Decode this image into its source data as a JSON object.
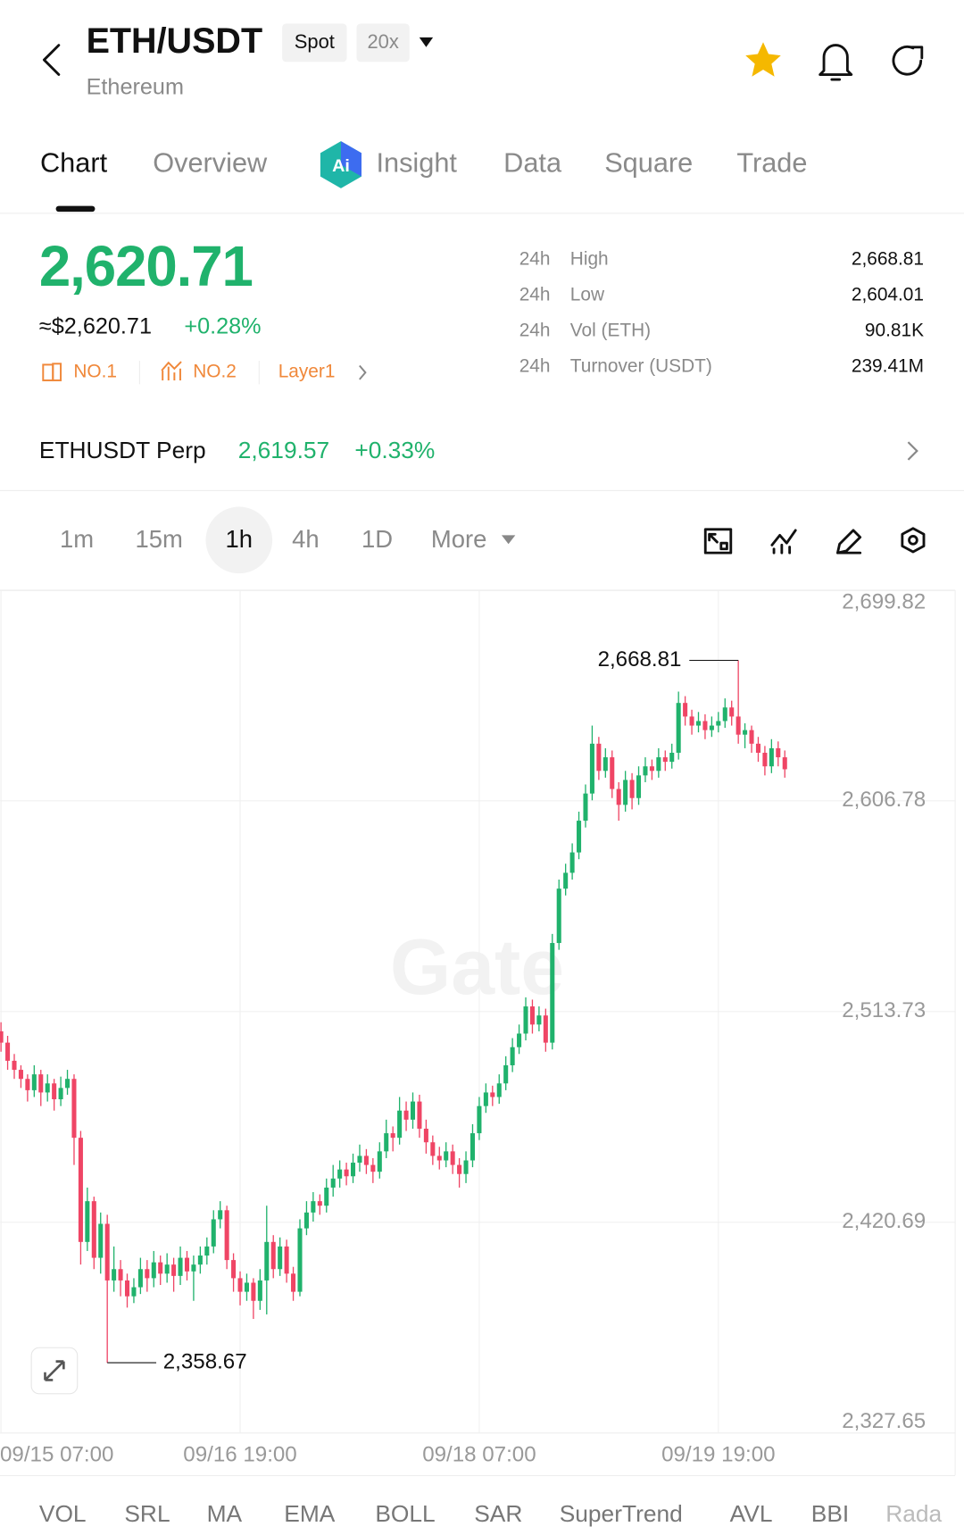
{
  "header": {
    "pair": "ETH/USDT",
    "market": "Spot",
    "leverage": "20x",
    "name": "Ethereum"
  },
  "tabs": [
    "Chart",
    "Overview",
    "Insight",
    "Data",
    "Square",
    "Trade"
  ],
  "ticker": {
    "price": "2,620.71",
    "usd": "≈$2,620.71",
    "change": "+0.28%",
    "tags": [
      "NO.1",
      "NO.2",
      "Layer1"
    ]
  },
  "stats": [
    {
      "period": "24h",
      "label": "High",
      "value": "2,668.81"
    },
    {
      "period": "24h",
      "label": "Low",
      "value": "2,604.01"
    },
    {
      "period": "24h",
      "label": "Vol (ETH)",
      "value": "90.81K"
    },
    {
      "period": "24h",
      "label": "Turnover (USDT)",
      "value": "239.41M"
    }
  ],
  "perp": {
    "name": "ETHUSDT Perp",
    "price": "2,619.57",
    "change": "+0.33%"
  },
  "intervals": [
    "1m",
    "15m",
    "1h",
    "4h",
    "1D",
    "More"
  ],
  "chart_data": {
    "type": "candlestick",
    "watermark": "Gate",
    "up_color": "#20b26c",
    "down_color": "#ef4565",
    "grid": true,
    "ylim": [
      2327.65,
      2699.82
    ],
    "yticks": [
      {
        "value": 2699.82,
        "label": "2,699.82"
      },
      {
        "value": 2606.78,
        "label": "2,606.78"
      },
      {
        "value": 2513.73,
        "label": "2,513.73"
      },
      {
        "value": 2420.69,
        "label": "2,420.69"
      },
      {
        "value": 2327.65,
        "label": "2,327.65"
      }
    ],
    "xlim": [
      -0.15,
      143.65
    ],
    "xticks": [
      {
        "value": 0,
        "label": "09/15 07:00"
      },
      {
        "value": 36,
        "label": "09/16 19:00"
      },
      {
        "value": 72,
        "label": "09/18 07:00"
      },
      {
        "value": 108,
        "label": "09/19 19:00"
      }
    ],
    "max_label": "2,668.81",
    "min_label": "2,358.67",
    "values": [
      [
        2505,
        2509,
        2496,
        2500
      ],
      [
        2500,
        2503,
        2488,
        2492
      ],
      [
        2492,
        2495,
        2484,
        2488
      ],
      [
        2488,
        2490,
        2480,
        2484
      ],
      [
        2484,
        2486,
        2474,
        2479
      ],
      [
        2479,
        2490,
        2476,
        2486
      ],
      [
        2486,
        2488,
        2472,
        2478
      ],
      [
        2478,
        2486,
        2474,
        2482
      ],
      [
        2482,
        2484,
        2470,
        2475
      ],
      [
        2475,
        2485,
        2472,
        2480
      ],
      [
        2480,
        2488,
        2477,
        2484
      ],
      [
        2484,
        2486,
        2446,
        2458
      ],
      [
        2458,
        2461,
        2402,
        2412
      ],
      [
        2412,
        2436,
        2408,
        2430
      ],
      [
        2430,
        2432,
        2400,
        2405
      ],
      [
        2405,
        2425,
        2398,
        2420
      ],
      [
        2420,
        2424,
        2358.67,
        2395
      ],
      [
        2395,
        2410,
        2390,
        2400
      ],
      [
        2400,
        2404,
        2388,
        2395
      ],
      [
        2395,
        2398,
        2383,
        2388
      ],
      [
        2388,
        2396,
        2385,
        2392
      ],
      [
        2392,
        2405,
        2389,
        2400
      ],
      [
        2400,
        2404,
        2390,
        2396
      ],
      [
        2396,
        2408,
        2392,
        2403
      ],
      [
        2403,
        2406,
        2393,
        2398
      ],
      [
        2398,
        2407,
        2394,
        2402
      ],
      [
        2402,
        2405,
        2390,
        2397
      ],
      [
        2397,
        2410,
        2393,
        2405
      ],
      [
        2405,
        2408,
        2395,
        2399
      ],
      [
        2399,
        2406,
        2386,
        2402
      ],
      [
        2402,
        2410,
        2398,
        2406
      ],
      [
        2406,
        2414,
        2402,
        2410
      ],
      [
        2410,
        2426,
        2407,
        2422
      ],
      [
        2422,
        2430,
        2418,
        2426
      ],
      [
        2426,
        2428,
        2400,
        2404
      ],
      [
        2404,
        2407,
        2390,
        2396
      ],
      [
        2396,
        2399,
        2384,
        2390
      ],
      [
        2390,
        2398,
        2386,
        2394
      ],
      [
        2394,
        2396,
        2378,
        2386
      ],
      [
        2386,
        2400,
        2382,
        2395
      ],
      [
        2395,
        2428,
        2380,
        2412
      ],
      [
        2412,
        2415,
        2396,
        2400
      ],
      [
        2400,
        2414,
        2397,
        2410
      ],
      [
        2410,
        2413,
        2394,
        2398
      ],
      [
        2398,
        2401,
        2386,
        2390
      ],
      [
        2390,
        2422,
        2388,
        2418
      ],
      [
        2418,
        2430,
        2415,
        2425
      ],
      [
        2425,
        2434,
        2421,
        2430
      ],
      [
        2430,
        2433,
        2424,
        2428
      ],
      [
        2428,
        2440,
        2425,
        2436
      ],
      [
        2436,
        2446,
        2432,
        2440
      ],
      [
        2440,
        2448,
        2436,
        2444
      ],
      [
        2444,
        2447,
        2437,
        2441
      ],
      [
        2441,
        2451,
        2438,
        2447
      ],
      [
        2447,
        2455,
        2443,
        2450
      ],
      [
        2450,
        2453,
        2442,
        2446
      ],
      [
        2446,
        2449,
        2438,
        2443
      ],
      [
        2443,
        2456,
        2440,
        2452
      ],
      [
        2452,
        2466,
        2449,
        2460
      ],
      [
        2460,
        2463,
        2452,
        2458
      ],
      [
        2458,
        2476,
        2455,
        2470
      ],
      [
        2470,
        2474,
        2461,
        2466
      ],
      [
        2466,
        2478,
        2462,
        2474
      ],
      [
        2474,
        2477,
        2458,
        2462
      ],
      [
        2462,
        2466,
        2451,
        2456
      ],
      [
        2456,
        2459,
        2446,
        2450
      ],
      [
        2450,
        2454,
        2444,
        2448
      ],
      [
        2448,
        2456,
        2445,
        2452
      ],
      [
        2452,
        2455,
        2442,
        2446
      ],
      [
        2446,
        2449,
        2436,
        2442
      ],
      [
        2442,
        2452,
        2438,
        2448
      ],
      [
        2448,
        2464,
        2445,
        2460
      ],
      [
        2460,
        2476,
        2457,
        2472
      ],
      [
        2472,
        2482,
        2469,
        2478
      ],
      [
        2478,
        2481,
        2472,
        2476
      ],
      [
        2476,
        2486,
        2473,
        2482
      ],
      [
        2482,
        2494,
        2479,
        2490
      ],
      [
        2490,
        2502,
        2487,
        2498
      ],
      [
        2498,
        2508,
        2495,
        2504
      ],
      [
        2504,
        2520,
        2501,
        2516
      ],
      [
        2516,
        2519,
        2504,
        2508
      ],
      [
        2508,
        2516,
        2505,
        2512
      ],
      [
        2512,
        2515,
        2496,
        2500
      ],
      [
        2500,
        2548,
        2497,
        2544
      ],
      [
        2544,
        2572,
        2541,
        2568
      ],
      [
        2568,
        2579,
        2565,
        2575
      ],
      [
        2575,
        2588,
        2572,
        2584
      ],
      [
        2584,
        2602,
        2581,
        2598
      ],
      [
        2598,
        2614,
        2595,
        2610
      ],
      [
        2610,
        2640,
        2607,
        2632
      ],
      [
        2632,
        2635,
        2616,
        2620
      ],
      [
        2620,
        2630,
        2617,
        2626
      ],
      [
        2626,
        2629,
        2608,
        2612
      ],
      [
        2612,
        2615,
        2598,
        2605
      ],
      [
        2605,
        2620,
        2602,
        2616
      ],
      [
        2616,
        2619,
        2603,
        2608
      ],
      [
        2608,
        2622,
        2605,
        2618
      ],
      [
        2618,
        2626,
        2615,
        2622
      ],
      [
        2622,
        2625,
        2616,
        2620
      ],
      [
        2620,
        2630,
        2617,
        2626
      ],
      [
        2626,
        2629,
        2620,
        2624
      ],
      [
        2624,
        2632,
        2621,
        2628
      ],
      [
        2628,
        2655,
        2625,
        2650
      ],
      [
        2650,
        2653,
        2640,
        2644
      ],
      [
        2644,
        2647,
        2636,
        2640
      ],
      [
        2640,
        2646,
        2637,
        2642
      ],
      [
        2642,
        2645,
        2634,
        2638
      ],
      [
        2638,
        2644,
        2635,
        2640
      ],
      [
        2640,
        2646,
        2637,
        2642
      ],
      [
        2642,
        2652,
        2639,
        2648
      ],
      [
        2648,
        2651,
        2640,
        2644
      ],
      [
        2644,
        2668.81,
        2632,
        2636
      ],
      [
        2636,
        2641,
        2630,
        2638
      ],
      [
        2638,
        2640,
        2628,
        2632
      ],
      [
        2632,
        2635,
        2624,
        2628
      ],
      [
        2628,
        2631,
        2618,
        2622
      ],
      [
        2622,
        2634,
        2619,
        2630
      ],
      [
        2630,
        2633,
        2622,
        2626
      ],
      [
        2626,
        2629,
        2617,
        2620.71
      ]
    ]
  },
  "indicators": [
    "VOL",
    "SRL",
    "MA",
    "EMA",
    "BOLL",
    "SAR",
    "SuperTrend",
    "AVL",
    "BBI",
    "Rada"
  ]
}
